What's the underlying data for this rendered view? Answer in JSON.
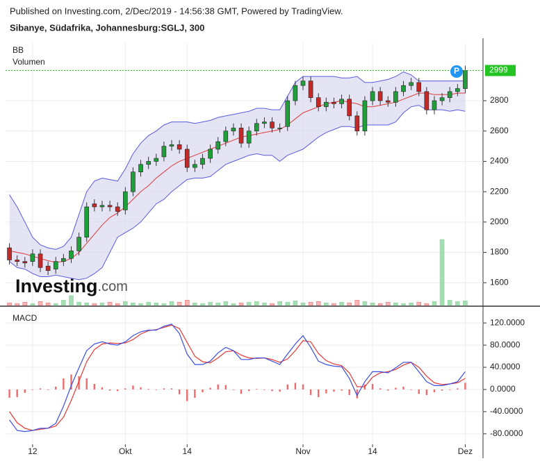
{
  "chart_data": [
    {
      "type": "candlestick",
      "title": "Published on Investing.com, 2/Dec/2019 - 14:56:38 GMT, Powered by TradingView.",
      "subtitle": "Sibanye, Südafrika, Johannesburg:SGLJ, 300",
      "watermark": "Investing",
      "watermark_suffix": ".com",
      "marker_label": "P",
      "up_color": "#1f9e3a",
      "down_color": "#c62828",
      "open": [
        1830,
        1750,
        1740,
        1740,
        1790,
        1710,
        1690,
        1740,
        1760,
        1810,
        1900,
        2120,
        2100,
        2110,
        2100,
        2080,
        2200,
        2330,
        2380,
        2400,
        2430,
        2500,
        2510,
        2480,
        2360,
        2380,
        2420,
        2480,
        2530,
        2600,
        2620,
        2520,
        2600,
        2650,
        2660,
        2620,
        2630,
        2800,
        2900,
        2930,
        2820,
        2760,
        2790,
        2780,
        2810,
        2700,
        2600,
        2800,
        2860,
        2800,
        2790,
        2860,
        2900,
        2920,
        2860,
        2740,
        2800,
        2820,
        2860,
        2880
      ],
      "high": [
        1860,
        1780,
        1770,
        1820,
        1820,
        1740,
        1770,
        1790,
        1840,
        1930,
        2130,
        2150,
        2140,
        2140,
        2130,
        2230,
        2360,
        2410,
        2430,
        2450,
        2530,
        2540,
        2540,
        2510,
        2410,
        2450,
        2510,
        2560,
        2630,
        2650,
        2650,
        2630,
        2680,
        2690,
        2690,
        2650,
        2830,
        2930,
        2960,
        2960,
        2850,
        2820,
        2820,
        2840,
        2840,
        2730,
        2830,
        2890,
        2890,
        2830,
        2890,
        2930,
        2950,
        2950,
        2890,
        2830,
        2850,
        2890,
        2910,
        3030
      ],
      "low": [
        1720,
        1710,
        1700,
        1710,
        1670,
        1650,
        1660,
        1710,
        1730,
        1780,
        1870,
        2070,
        2070,
        2070,
        2040,
        2050,
        2170,
        2300,
        2350,
        2370,
        2400,
        2470,
        2450,
        2330,
        2330,
        2350,
        2390,
        2450,
        2500,
        2570,
        2490,
        2490,
        2570,
        2620,
        2590,
        2590,
        2600,
        2770,
        2870,
        2790,
        2730,
        2730,
        2750,
        2750,
        2670,
        2570,
        2570,
        2770,
        2770,
        2760,
        2760,
        2830,
        2870,
        2830,
        2710,
        2710,
        2770,
        2790,
        2830,
        2850
      ],
      "close": [
        1750,
        1740,
        1730,
        1790,
        1700,
        1680,
        1740,
        1760,
        1810,
        1900,
        2100,
        2100,
        2110,
        2100,
        2070,
        2200,
        2330,
        2380,
        2400,
        2420,
        2500,
        2510,
        2480,
        2360,
        2380,
        2420,
        2480,
        2530,
        2600,
        2620,
        2520,
        2600,
        2650,
        2660,
        2620,
        2620,
        2800,
        2900,
        2930,
        2820,
        2760,
        2790,
        2780,
        2810,
        2700,
        2600,
        2800,
        2860,
        2800,
        2790,
        2860,
        2900,
        2920,
        2860,
        2740,
        2800,
        2820,
        2860,
        2880,
        2999
      ],
      "bb": {
        "name": "BB",
        "band_color": "#5a5ae0",
        "mid_color": "#e03a3a",
        "fill": "#d8d8f0",
        "upper": [
          2180,
          2100,
          2000,
          1900,
          1850,
          1830,
          1820,
          1840,
          1900,
          2050,
          2200,
          2270,
          2290,
          2280,
          2270,
          2350,
          2450,
          2520,
          2570,
          2600,
          2640,
          2660,
          2660,
          2660,
          2650,
          2660,
          2670,
          2690,
          2700,
          2710,
          2720,
          2730,
          2750,
          2750,
          2740,
          2740,
          2830,
          2920,
          2960,
          2960,
          2960,
          2960,
          2960,
          2950,
          2950,
          2960,
          2920,
          2920,
          2930,
          2940,
          2960,
          2990,
          2970,
          2930,
          2930,
          2930,
          2930,
          2930,
          2930,
          2930
        ],
        "middle": [
          1810,
          1800,
          1790,
          1775,
          1760,
          1745,
          1735,
          1740,
          1760,
          1800,
          1860,
          1920,
          1980,
          2030,
          2060,
          2100,
          2150,
          2200,
          2240,
          2290,
          2330,
          2370,
          2400,
          2420,
          2440,
          2460,
          2480,
          2500,
          2520,
          2540,
          2560,
          2570,
          2580,
          2590,
          2600,
          2610,
          2640,
          2680,
          2720,
          2740,
          2760,
          2780,
          2790,
          2800,
          2790,
          2780,
          2760,
          2760,
          2770,
          2780,
          2790,
          2810,
          2830,
          2850,
          2850,
          2840,
          2840,
          2840,
          2850,
          2850
        ],
        "lower": [
          1740,
          1700,
          1690,
          1660,
          1640,
          1640,
          1650,
          1640,
          1630,
          1620,
          1630,
          1660,
          1700,
          1800,
          1900,
          1930,
          1960,
          2000,
          2060,
          2120,
          2150,
          2200,
          2240,
          2280,
          2290,
          2290,
          2300,
          2340,
          2380,
          2400,
          2420,
          2440,
          2450,
          2440,
          2440,
          2400,
          2440,
          2460,
          2480,
          2520,
          2560,
          2590,
          2610,
          2630,
          2630,
          2620,
          2640,
          2640,
          2640,
          2640,
          2660,
          2720,
          2760,
          2770,
          2740,
          2740,
          2740,
          2730,
          2740,
          2730
        ]
      },
      "volume": {
        "name": "Volumen",
        "up_color": "#8fd6a0",
        "down_color": "#f5a3a3",
        "ylim": [
          0,
          100
        ],
        "values": [
          4,
          3,
          5,
          3,
          6,
          4,
          3,
          8,
          15,
          5,
          4,
          3,
          4,
          5,
          3,
          6,
          4,
          3,
          5,
          4,
          3,
          6,
          5,
          8,
          4,
          3,
          5,
          4,
          6,
          3,
          4,
          5,
          6,
          4,
          3,
          6,
          5,
          7,
          4,
          5,
          6,
          4,
          3,
          5,
          4,
          8,
          6,
          4,
          3,
          5,
          4,
          3,
          4,
          5,
          3,
          6,
          100,
          8,
          6,
          7
        ]
      },
      "last_color": "#22c322",
      "ylim": [
        1450,
        3180
      ],
      "yticks": [
        1600,
        1800,
        2000,
        2200,
        2400,
        2600,
        2800
      ],
      "grid": true
    },
    {
      "type": "macd",
      "title": "MACD",
      "categories": [
        null,
        null,
        null,
        "12",
        null,
        null,
        null,
        null,
        null,
        null,
        null,
        null,
        null,
        null,
        null,
        "Okt",
        null,
        null,
        null,
        null,
        null,
        null,
        null,
        "14",
        null,
        null,
        null,
        null,
        null,
        null,
        null,
        null,
        null,
        null,
        null,
        null,
        null,
        null,
        "Nov",
        null,
        null,
        null,
        null,
        null,
        null,
        null,
        null,
        "14",
        null,
        null,
        null,
        null,
        null,
        null,
        null,
        null,
        null,
        null,
        null,
        "Dez"
      ],
      "macd": {
        "color": "#3a4ee0",
        "values": [
          -55,
          -74,
          -76,
          -74,
          -70,
          -70,
          -61,
          -30,
          7,
          39,
          70,
          82,
          86,
          82,
          80,
          86,
          97,
          104,
          107,
          107,
          114,
          118,
          101,
          64,
          45,
          45,
          51,
          66,
          76,
          70,
          54,
          54,
          57,
          57,
          51,
          45,
          64,
          82,
          97,
          76,
          51,
          45,
          42,
          41,
          20,
          -11,
          14,
          32,
          32,
          30,
          39,
          49,
          49,
          32,
          14,
          7,
          7,
          10,
          14,
          32
        ]
      },
      "signal": {
        "color": "#e53935",
        "values": [
          -40,
          -60,
          -70,
          -74,
          -72,
          -70,
          -66,
          -50,
          -20,
          15,
          50,
          72,
          82,
          84,
          83,
          84,
          90,
          100,
          106,
          108,
          112,
          116,
          110,
          85,
          60,
          50,
          48,
          57,
          68,
          70,
          62,
          57,
          56,
          57,
          54,
          49,
          55,
          70,
          88,
          86,
          65,
          52,
          46,
          43,
          30,
          5,
          5,
          22,
          30,
          32,
          36,
          44,
          49,
          40,
          24,
          12,
          9,
          10,
          12,
          20
        ]
      },
      "histogram": {
        "color": "#ef6b6b",
        "values": [
          -15,
          -14,
          -6,
          0,
          2,
          0,
          5,
          20,
          27,
          24,
          20,
          10,
          4,
          -2,
          -3,
          2,
          7,
          4,
          1,
          -1,
          2,
          2,
          -9,
          -21,
          -15,
          -5,
          3,
          9,
          8,
          0,
          -8,
          -3,
          1,
          0,
          -3,
          -4,
          9,
          12,
          9,
          -10,
          -14,
          -7,
          -4,
          -2,
          -10,
          -16,
          9,
          10,
          2,
          -2,
          3,
          5,
          0,
          -8,
          -10,
          -5,
          -2,
          0,
          2,
          12
        ]
      },
      "ylim": [
        -99,
        149
      ],
      "yticks": [
        {
          "value": 120,
          "label": "120.0000"
        },
        {
          "value": 80,
          "label": "80.0000"
        },
        {
          "value": 40,
          "label": "40.0000"
        },
        {
          "value": 0,
          "label": "0.0000"
        },
        {
          "value": -40,
          "label": "-40.0000"
        },
        {
          "value": -80,
          "label": "-80.0000"
        }
      ],
      "grid": true
    }
  ]
}
